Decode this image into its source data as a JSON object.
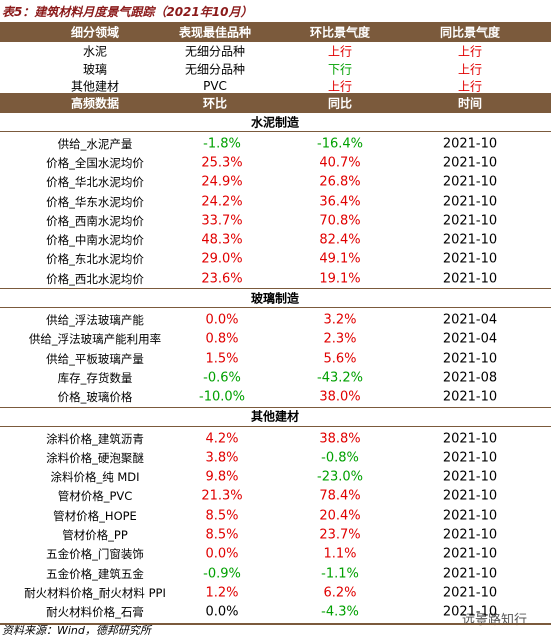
{
  "title": "表5：建筑材料月度景气跟踪（2021年10月）",
  "table1": {
    "headers": [
      "细分领域",
      "表现最佳品种",
      "环比景气度",
      "同比景气度"
    ],
    "rows": [
      [
        "水泥",
        "无细分品种",
        "上行",
        "上行"
      ],
      [
        "玻璃",
        "无细分品种",
        "下行",
        "上行"
      ],
      [
        "其他建材",
        "PVC",
        "上行",
        "上行"
      ]
    ],
    "colors": [
      [
        "#e00000",
        "#e00000"
      ],
      [
        "#00a000",
        "#e00000"
      ],
      [
        "#e00000",
        "#e00000"
      ]
    ]
  },
  "table2": {
    "headers": [
      "高频数据",
      "环比",
      "同比",
      "时间"
    ],
    "sections": [
      {
        "title": "水泥制造",
        "rows": [
          [
            "供给_水泥产量",
            "-1.8%",
            "-16.4%",
            "2021-10"
          ],
          [
            "价格_全国水泥均价",
            "25.3%",
            "40.7%",
            "2021-10"
          ],
          [
            "价格_华北水泥均价",
            "24.9%",
            "26.8%",
            "2021-10"
          ],
          [
            "价格_华东水泥均价",
            "24.2%",
            "36.4%",
            "2021-10"
          ],
          [
            "价格_西南水泥均价",
            "33.7%",
            "70.8%",
            "2021-10"
          ],
          [
            "价格_中南水泥均价",
            "48.3%",
            "82.4%",
            "2021-10"
          ],
          [
            "价格_东北水泥均价",
            "29.0%",
            "49.1%",
            "2021-10"
          ],
          [
            "价格_西北水泥均价",
            "23.6%",
            "19.1%",
            "2021-10"
          ]
        ],
        "colors": [
          [
            "#00a000",
            "#00a000"
          ],
          [
            "#e00000",
            "#e00000"
          ],
          [
            "#e00000",
            "#e00000"
          ],
          [
            "#e00000",
            "#e00000"
          ],
          [
            "#e00000",
            "#e00000"
          ],
          [
            "#e00000",
            "#e00000"
          ],
          [
            "#e00000",
            "#e00000"
          ],
          [
            "#e00000",
            "#e00000"
          ]
        ]
      },
      {
        "title": "玻璃制造",
        "rows": [
          [
            "供给_浮法玻璃产能",
            "0.0%",
            "3.2%",
            "2021-04"
          ],
          [
            "供给_浮法玻璃产能利用率",
            "0.8%",
            "2.3%",
            "2021-04"
          ],
          [
            "供给_平板玻璃产量",
            "1.5%",
            "5.6%",
            "2021-10"
          ],
          [
            "库存_存货数量",
            "-0.6%",
            "-43.2%",
            "2021-08"
          ],
          [
            "价格_玻璃价格",
            "-10.0%",
            "38.0%",
            "2021-10"
          ]
        ],
        "colors": [
          [
            "#e00000",
            "#e00000"
          ],
          [
            "#e00000",
            "#e00000"
          ],
          [
            "#e00000",
            "#e00000"
          ],
          [
            "#00a000",
            "#00a000"
          ],
          [
            "#00a000",
            "#e00000"
          ]
        ]
      },
      {
        "title": "其他建材",
        "rows": [
          [
            "涂料价格_建筑沥青",
            "4.2%",
            "38.8%",
            "2021-10"
          ],
          [
            "涂料价格_硬泡聚醚",
            "3.8%",
            "-0.8%",
            "2021-10"
          ],
          [
            "涂料价格_纯 MDI",
            "9.8%",
            "-23.0%",
            "2021-10"
          ],
          [
            "管材价格_PVC",
            "21.3%",
            "78.4%",
            "2021-10"
          ],
          [
            "管材价格_HOPE",
            "8.5%",
            "20.4%",
            "2021-10"
          ],
          [
            "管材价格_PP",
            "8.5%",
            "23.7%",
            "2021-10"
          ],
          [
            "五金价格_门窗装饰",
            "0.0%",
            "1.1%",
            "2021-10"
          ],
          [
            "五金价格_建筑五金",
            "-0.9%",
            "-1.1%",
            "2021-10"
          ],
          [
            "耐火材料价格_耐火材料 PPI",
            "1.2%",
            "6.2%",
            "2021-10"
          ],
          [
            "耐火材料价格_石膏",
            "0.0%",
            "-4.3%",
            "2021-10"
          ]
        ],
        "colors": [
          [
            "#e00000",
            "#e00000"
          ],
          [
            "#e00000",
            "#00a000"
          ],
          [
            "#e00000",
            "#00a000"
          ],
          [
            "#e00000",
            "#e00000"
          ],
          [
            "#e00000",
            "#e00000"
          ],
          [
            "#e00000",
            "#e00000"
          ],
          [
            "#e00000",
            "#e00000"
          ],
          [
            "#00a000",
            "#00a000"
          ],
          [
            "#e00000",
            "#e00000"
          ],
          [
            "#000000",
            "#00a000"
          ]
        ]
      }
    ]
  },
  "source": "资料来源：Wind，德邦研究所",
  "watermark": "远景路知行"
}
